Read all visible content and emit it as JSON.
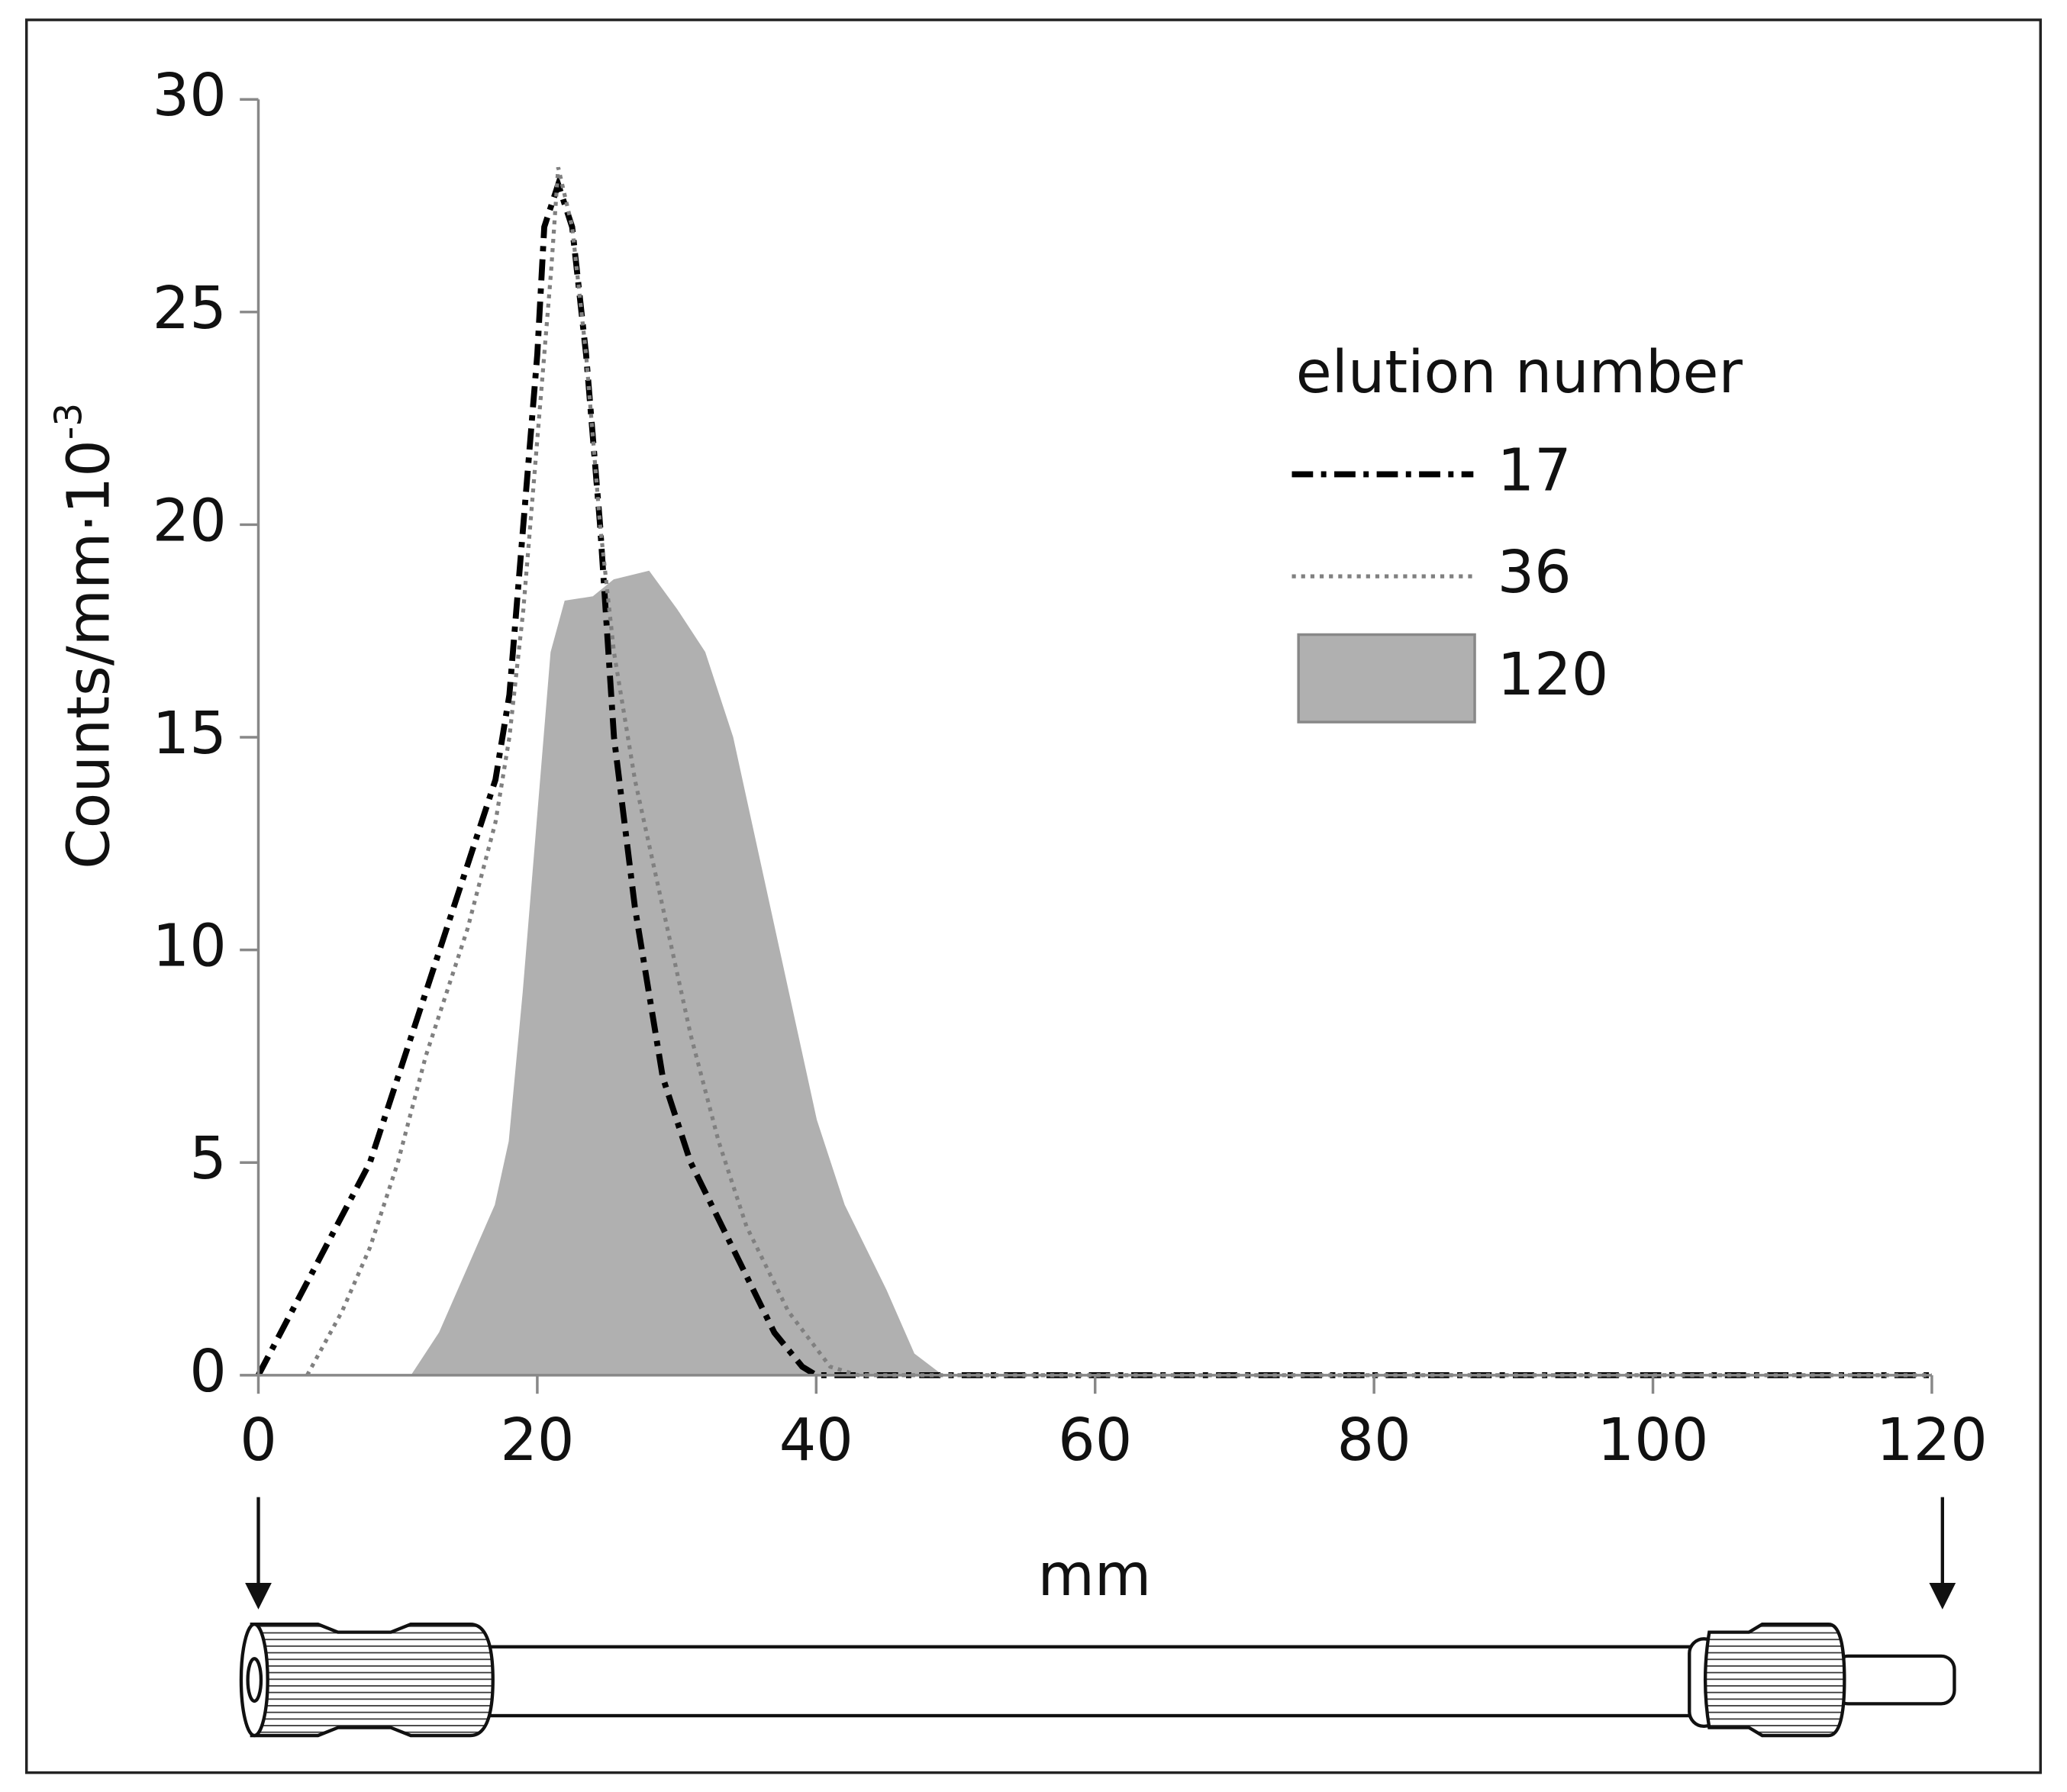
{
  "chart_data": {
    "type": "line",
    "x_label": "mm",
    "y_label": "Counts/mm·10",
    "y_label_superscript": "-3",
    "legend_title": "elution number",
    "xlim": [
      0,
      120
    ],
    "xticks": [
      0,
      20,
      40,
      60,
      80,
      100,
      120
    ],
    "ylim": [
      0,
      30
    ],
    "yticks": [
      0,
      5,
      10,
      15,
      20,
      25,
      30
    ],
    "series": [
      {
        "name": "17",
        "color": "#000000",
        "style": "dash-dot",
        "x": [
          0,
          4,
          8,
          10,
          14,
          17,
          18,
          19,
          20,
          20.5,
          21.5,
          22.5,
          23.5,
          24.5,
          25.5,
          27,
          29,
          31,
          34,
          37,
          39,
          40,
          50,
          120
        ],
        "values": [
          0,
          2.5,
          5,
          7,
          11,
          14,
          16,
          20,
          24,
          27,
          28,
          27,
          24,
          20,
          15,
          11,
          7,
          5,
          3,
          1,
          0.2,
          0,
          0,
          0
        ]
      },
      {
        "name": "36",
        "color": "#808080",
        "style": "dotted",
        "x": [
          3.5,
          6,
          8,
          10,
          12,
          15,
          17,
          18,
          19,
          20,
          21,
          21.5,
          22.5,
          23.5,
          24.5,
          25.5,
          27,
          29,
          31,
          33,
          35,
          38,
          41,
          43,
          120
        ],
        "values": [
          0,
          1.5,
          3,
          5,
          7.5,
          10.5,
          13,
          15,
          18,
          22,
          26,
          28.4,
          27,
          24,
          20,
          17,
          14,
          11,
          8,
          5.5,
          3.5,
          1.5,
          0.2,
          0,
          0
        ]
      },
      {
        "name": "120",
        "color": "#b0b0b0",
        "style": "area",
        "x": [
          11,
          13,
          15,
          17,
          18,
          19,
          20,
          21,
          22,
          24,
          25.5,
          28,
          30,
          32,
          34,
          36,
          38,
          40,
          42,
          45,
          47,
          49,
          120
        ],
        "values": [
          0,
          1,
          2.5,
          4,
          5.5,
          9,
          13,
          17,
          18.2,
          18.3,
          18.7,
          18.9,
          18,
          17,
          15,
          12,
          9,
          6,
          4,
          2,
          0.5,
          0,
          0
        ]
      }
    ]
  }
}
